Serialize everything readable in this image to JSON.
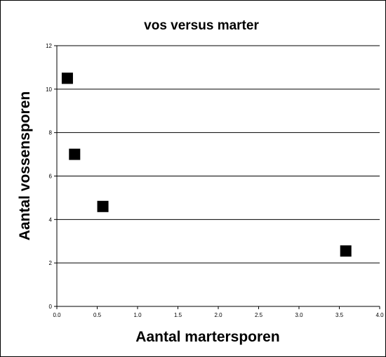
{
  "chart_data": {
    "type": "scatter",
    "title": "vos versus marter",
    "xlabel": "Aantal martersporen",
    "ylabel": "Aantal vossensporen",
    "xlim": [
      0,
      4
    ],
    "ylim": [
      0,
      12
    ],
    "x_ticks": [
      "0.0",
      "0.5",
      "1.0",
      "1.5",
      "2.0",
      "2.5",
      "3.0",
      "3.5",
      "4.0"
    ],
    "y_ticks": [
      "0",
      "2",
      "4",
      "6",
      "8",
      "10",
      "12"
    ],
    "grid": "horizontal",
    "marker": "square",
    "marker_color": "#000000",
    "series": [
      {
        "points": [
          {
            "x": 0.13,
            "y": 10.5
          },
          {
            "x": 0.22,
            "y": 7.0
          },
          {
            "x": 0.57,
            "y": 4.6
          },
          {
            "x": 3.58,
            "y": 2.55
          }
        ]
      }
    ]
  }
}
